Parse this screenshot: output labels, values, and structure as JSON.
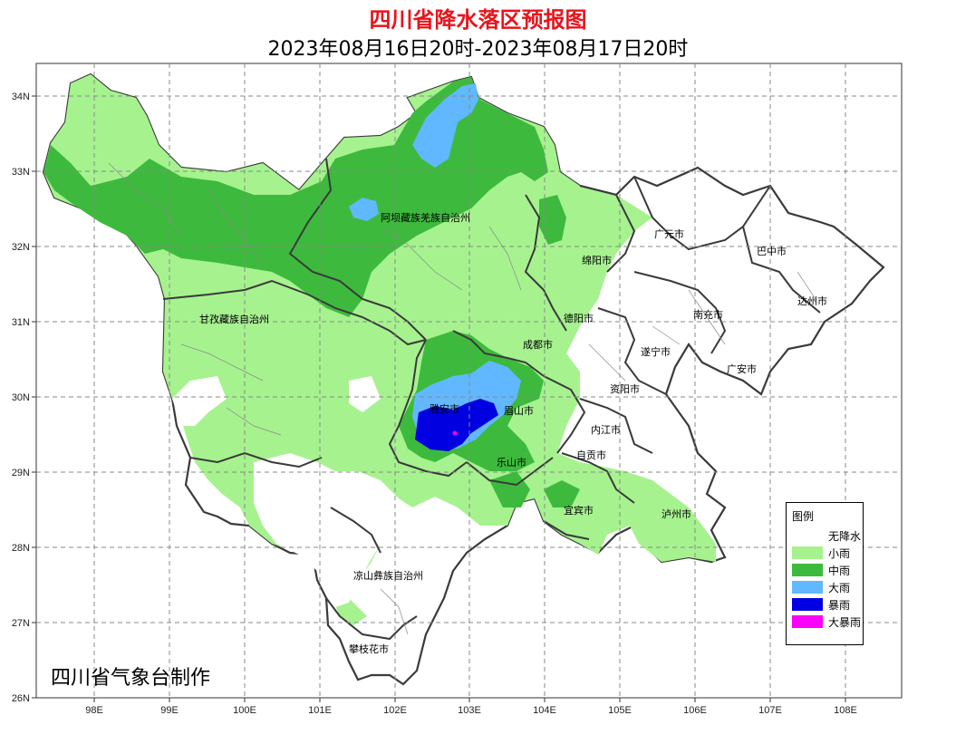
{
  "title": "四川省降水落区预报图",
  "subtitle": "2023年08月16日20时-2023年08月17日20时",
  "maker": "四川省气象台制作",
  "axes": {
    "longitude_ticks": [
      "98E",
      "99E",
      "100E",
      "101E",
      "102E",
      "103E",
      "104E",
      "105E",
      "106E",
      "107E",
      "108E"
    ],
    "latitude_ticks": [
      "34N",
      "33N",
      "32N",
      "31N",
      "30N",
      "29N",
      "28N",
      "27N",
      "26N"
    ]
  },
  "regions": {
    "aba": "阿坝藏族羌族自治州",
    "ganzi": "甘孜藏族自治州",
    "liangshan": "凉山彝族自治州",
    "guangyuan": "广元市",
    "bazhong": "巴中市",
    "mianyang": "绵阳市",
    "dazhou": "达州市",
    "deyang": "德阳市",
    "nanchong": "南充市",
    "chengdu": "成都市",
    "suining": "遂宁市",
    "guangan": "广安市",
    "ziyang": "资阳市",
    "yaan": "雅安市",
    "meishan": "眉山市",
    "neijiang": "内江市",
    "zigong": "自贡市",
    "leshan": "乐山市",
    "yibin": "宜宾市",
    "luzhou": "泸州市",
    "panzhihua": "攀枝花市"
  },
  "legend": {
    "title": "图例",
    "items": [
      {
        "label": "无降水",
        "color": "#ffffff"
      },
      {
        "label": "小雨",
        "color": "#a6f28f"
      },
      {
        "label": "中雨",
        "color": "#3dba3d"
      },
      {
        "label": "大雨",
        "color": "#61b8ff"
      },
      {
        "label": "暴雨",
        "color": "#0000e1"
      },
      {
        "label": "大暴雨",
        "color": "#fa00fa"
      }
    ]
  },
  "colors": {
    "title": "#e8141b",
    "grid": "#888888",
    "border": "#3a3a3a"
  }
}
